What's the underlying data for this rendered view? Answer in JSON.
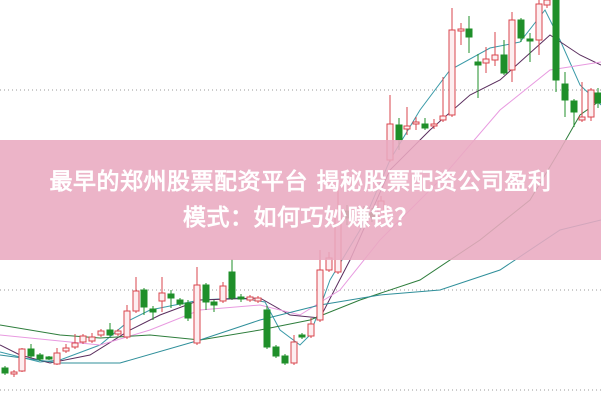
{
  "article": {
    "title_line1": "最早的郑州股票配资平台 揭秘股票配资公司盈利",
    "title_line2": "模式：如何巧妙赚钱？"
  },
  "colors": {
    "up_candle": "#d9464e",
    "down_candle": "#1f8f2a",
    "band": "#e9aac0",
    "ma_lines": [
      "#3a9aa8",
      "#5a2e5e",
      "#e89ae0",
      "#2e7d3c",
      "#2f8f9a"
    ],
    "grid": "#999999"
  },
  "background_chart": "candlestick-with-moving-averages"
}
